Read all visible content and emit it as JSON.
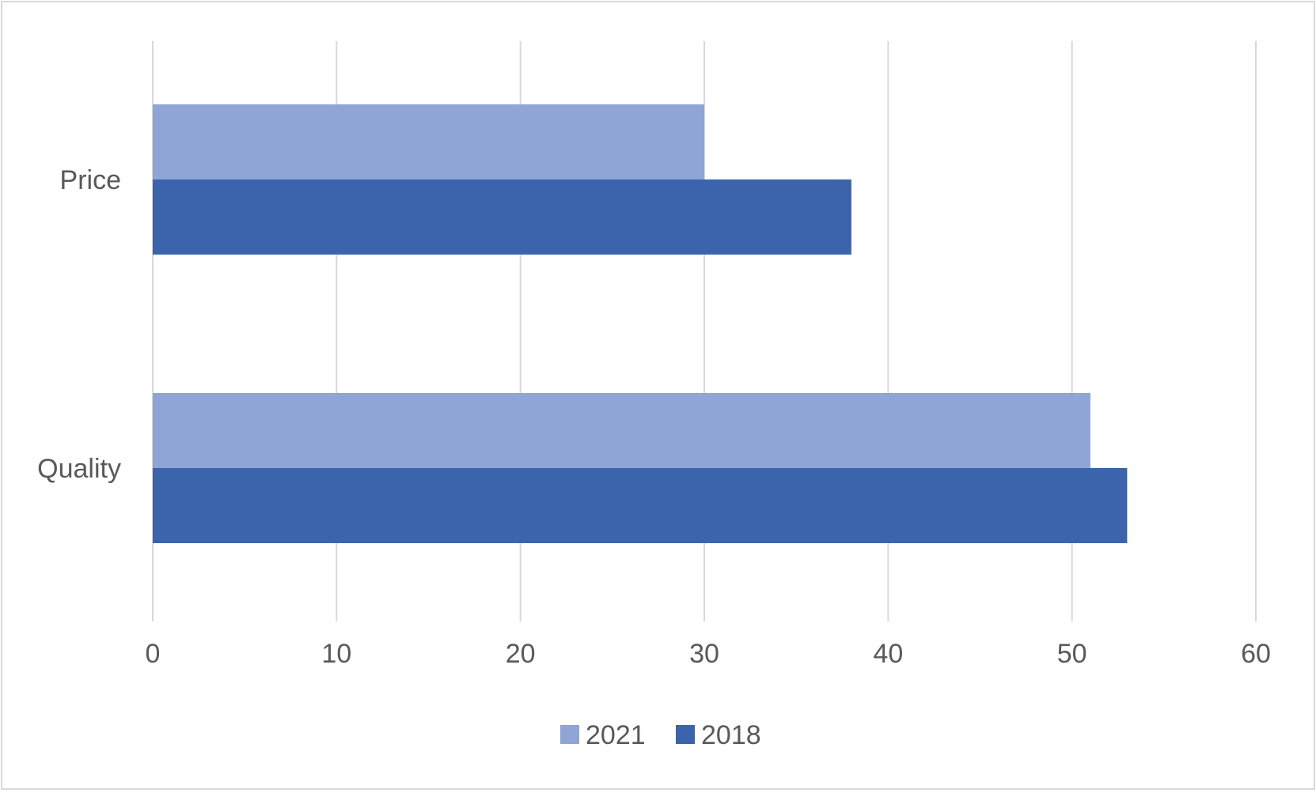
{
  "chart_data": {
    "type": "bar",
    "orientation": "horizontal",
    "categories": [
      "Price",
      "Quality"
    ],
    "series": [
      {
        "name": "2021",
        "values": [
          30,
          51
        ],
        "color": "#8FA5D6"
      },
      {
        "name": "2018",
        "values": [
          38,
          53
        ],
        "color": "#3B64AD"
      }
    ],
    "xlim": [
      0,
      60
    ],
    "xticks": [
      0,
      10,
      20,
      30,
      40,
      50,
      60
    ],
    "grid": true,
    "legend_position": "bottom"
  },
  "colors": {
    "gridline": "#D9D9D9",
    "frame": "#D9D9D9",
    "text": "#595959"
  }
}
